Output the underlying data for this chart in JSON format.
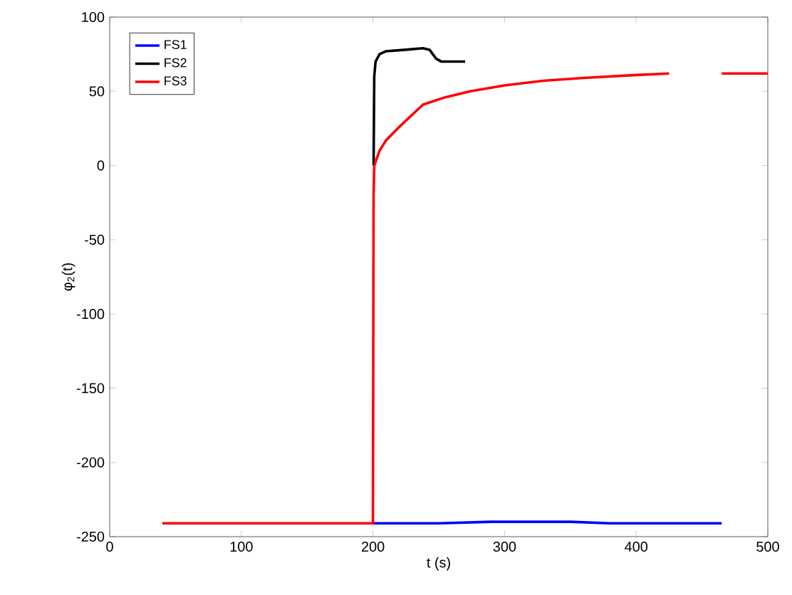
{
  "chart_data": {
    "type": "line",
    "xlabel": "t (s)",
    "ylabel": "φ$_{2}$(t)",
    "xlim": [
      0,
      500
    ],
    "ylim": [
      -250,
      100
    ],
    "xticks": [
      0,
      100,
      200,
      300,
      400,
      500
    ],
    "yticks": [
      -250,
      -200,
      -150,
      -100,
      -50,
      0,
      50,
      100
    ],
    "grid": false,
    "legend": "top left",
    "marker": "none",
    "line_style": "solid",
    "series": [
      {
        "name": "FS1",
        "color": "#0000ff",
        "x": [
          200,
          250,
          290,
          320,
          350,
          380,
          420,
          465
        ],
        "values": [
          -241,
          -241,
          -240,
          -240,
          -240,
          -241,
          -241,
          -241
        ]
      },
      {
        "name": "FS2",
        "color": "#000000",
        "x": [
          200.5,
          201,
          202,
          205,
          210,
          225,
          238,
          243,
          248,
          252,
          270
        ],
        "values": [
          0,
          60,
          70,
          75,
          77,
          78,
          79,
          78,
          72,
          70,
          70
        ]
      },
      {
        "name": "FS3",
        "color": "#ff0000",
        "x": [
          40,
          100,
          150,
          199.5,
          200,
          200.5,
          201,
          205,
          210,
          220,
          238,
          255,
          274,
          300,
          328,
          360,
          400,
          425,
          445,
          465,
          500
        ],
        "values": [
          -241,
          -241,
          -241,
          -241,
          -241,
          -20,
          0,
          10,
          17,
          26,
          41,
          46,
          50,
          54,
          57,
          59,
          61,
          62,
          null,
          62,
          62
        ]
      }
    ]
  }
}
